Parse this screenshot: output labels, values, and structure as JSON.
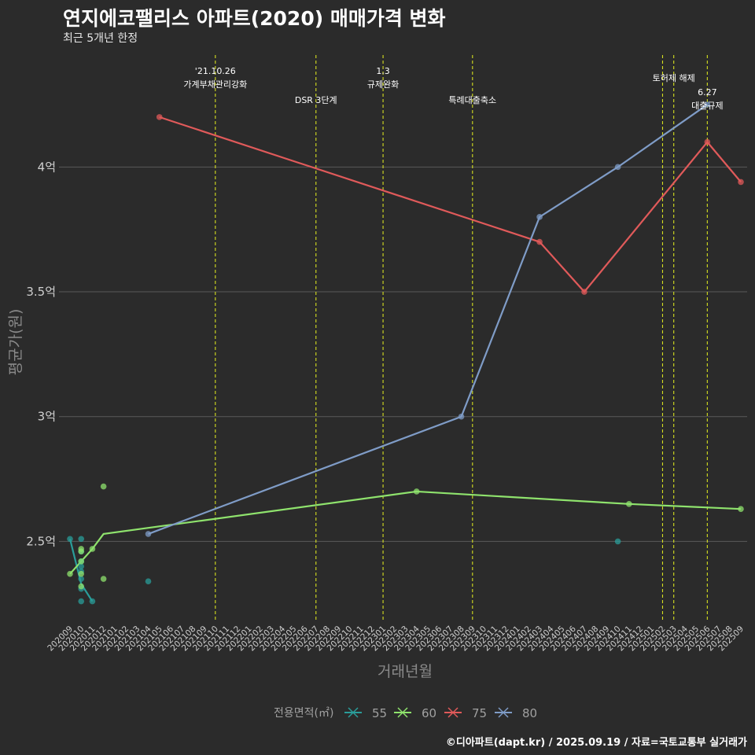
{
  "title": "연지에코팰리스 아파트(2020) 매매가격 변화",
  "subtitle": "최근 5개년 한정",
  "footer": "©디아파트(dapt.kr) / 2025.09.19 / 자료=국토교통부 실거래가",
  "chart_data": {
    "type": "line",
    "xlabel": "거래년월",
    "ylabel": "평균가(원)",
    "x_ticks": [
      "202009",
      "202010",
      "202011",
      "202012",
      "202101",
      "202102",
      "202103",
      "202104",
      "202105",
      "202106",
      "202107",
      "202108",
      "202109",
      "202110",
      "202111",
      "202112",
      "202201",
      "202202",
      "202203",
      "202204",
      "202205",
      "202206",
      "202207",
      "202208",
      "202209",
      "202210",
      "202211",
      "202212",
      "202301",
      "202302",
      "202303",
      "202304",
      "202305",
      "202306",
      "202307",
      "202308",
      "202309",
      "202310",
      "202311",
      "202312",
      "202401",
      "202402",
      "202403",
      "202404",
      "202405",
      "202406",
      "202407",
      "202408",
      "202409",
      "202410",
      "202411",
      "202412",
      "202501",
      "202502",
      "202503",
      "202504",
      "202505",
      "202506",
      "202507",
      "202508",
      "202509"
    ],
    "ylim": [
      2.18,
      4.48
    ],
    "y_ticks": [
      {
        "value": 2.5,
        "label": "2.5억"
      },
      {
        "value": 3.0,
        "label": "3억"
      },
      {
        "value": 3.5,
        "label": "3.5억"
      },
      {
        "value": 4.0,
        "label": "4억"
      }
    ],
    "grid": "horizontal",
    "legend": {
      "title": "전용면적(㎡)",
      "position": "bottom"
    },
    "series": [
      {
        "name": "55",
        "color": "#2a9d9a",
        "line": [
          [
            "202009",
            2.51
          ],
          [
            "202010",
            2.33
          ],
          [
            "202011",
            2.26
          ]
        ],
        "points": [
          [
            "202009",
            2.51
          ],
          [
            "202010",
            2.51
          ],
          [
            "202010",
            2.46
          ],
          [
            "202010",
            2.42
          ],
          [
            "202010",
            2.4
          ],
          [
            "202010",
            2.38
          ],
          [
            "202010",
            2.35
          ],
          [
            "202010",
            2.31
          ],
          [
            "202010",
            2.26
          ],
          [
            "202011",
            2.26
          ],
          [
            "202104",
            2.34
          ],
          [
            "202410",
            2.5
          ]
        ]
      },
      {
        "name": "60",
        "color": "#8fe36d",
        "line": [
          [
            "202009",
            2.37
          ],
          [
            "202010",
            2.42
          ],
          [
            "202011",
            2.47
          ],
          [
            "202012",
            2.53
          ],
          [
            "202304",
            2.7
          ],
          [
            "202411",
            2.65
          ],
          [
            "202509",
            2.63
          ]
        ],
        "points": [
          [
            "202009",
            2.37
          ],
          [
            "202010",
            2.47
          ],
          [
            "202010",
            2.46
          ],
          [
            "202010",
            2.42
          ],
          [
            "202010",
            2.37
          ],
          [
            "202010",
            2.32
          ],
          [
            "202011",
            2.47
          ],
          [
            "202012",
            2.72
          ],
          [
            "202012",
            2.35
          ],
          [
            "202304",
            2.7
          ],
          [
            "202411",
            2.65
          ],
          [
            "202509",
            2.63
          ]
        ]
      },
      {
        "name": "75",
        "color": "#e05a5a",
        "line": [
          [
            "202105",
            4.2
          ],
          [
            "202403",
            3.7
          ],
          [
            "202407",
            3.5
          ],
          [
            "202506",
            4.1
          ],
          [
            "202509",
            3.94
          ]
        ],
        "points": [
          [
            "202105",
            4.2
          ],
          [
            "202403",
            3.7
          ],
          [
            "202407",
            3.5
          ],
          [
            "202506",
            4.1
          ],
          [
            "202509",
            3.94
          ]
        ]
      },
      {
        "name": "80",
        "color": "#7f9cc7",
        "line": [
          [
            "202104",
            2.53
          ],
          [
            "202308",
            3.0
          ],
          [
            "202403",
            3.8
          ],
          [
            "202410",
            4.0
          ],
          [
            "202506",
            4.25
          ]
        ],
        "points": [
          [
            "202104",
            2.53
          ],
          [
            "202308",
            3.0
          ],
          [
            "202403",
            3.8
          ],
          [
            "202410",
            4.0
          ],
          [
            "202506",
            4.25
          ]
        ]
      }
    ],
    "events": [
      {
        "x": "202110",
        "lines": [
          "'21.10.26",
          "가계부채관리강화"
        ],
        "row": 0
      },
      {
        "x": "202207",
        "lines": [
          "DSR 3단계"
        ],
        "row": 1
      },
      {
        "x": "202301",
        "lines": [
          "1.3",
          "규제완화"
        ],
        "row": 0
      },
      {
        "x": "202309",
        "lines": [
          "특례대출축소"
        ],
        "row": 1
      },
      {
        "x": "202502",
        "lines": [],
        "row": 0
      },
      {
        "x": "202503",
        "lines": [
          "토허제 해제"
        ],
        "row": 0
      },
      {
        "x": "202506",
        "lines": [
          "6.27",
          "대출규제"
        ],
        "row": 1
      }
    ]
  }
}
